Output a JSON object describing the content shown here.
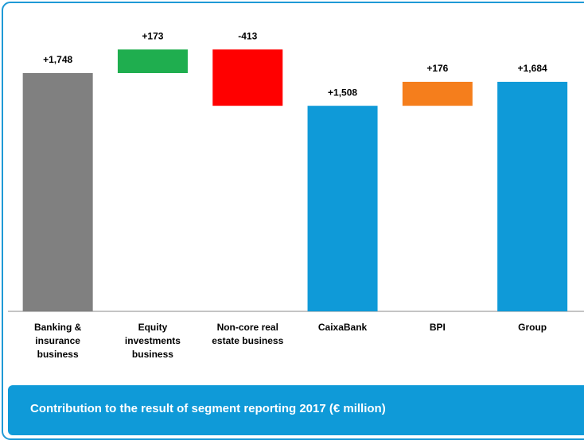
{
  "chart_data": {
    "type": "waterfall",
    "title": "Contribution to the result of segment reporting 2017 (€ million)",
    "categories": [
      "Banking & insurance business",
      "Equity investments business",
      "Non-core real estate business",
      "CaixaBank",
      "BPI",
      "Group"
    ],
    "values": [
      1748,
      173,
      -413,
      1508,
      176,
      1684
    ],
    "value_labels": [
      "+1,748",
      "+173",
      "-413",
      "+1,508",
      "+176",
      "+1,684"
    ],
    "totals": [
      false,
      false,
      false,
      true,
      false,
      true
    ],
    "colors": [
      "#808080",
      "#1fae4f",
      "#ff0000",
      "#0f9ad8",
      "#f57e1c",
      "#0f9ad8"
    ],
    "ylim": [
      0,
      2000
    ]
  }
}
